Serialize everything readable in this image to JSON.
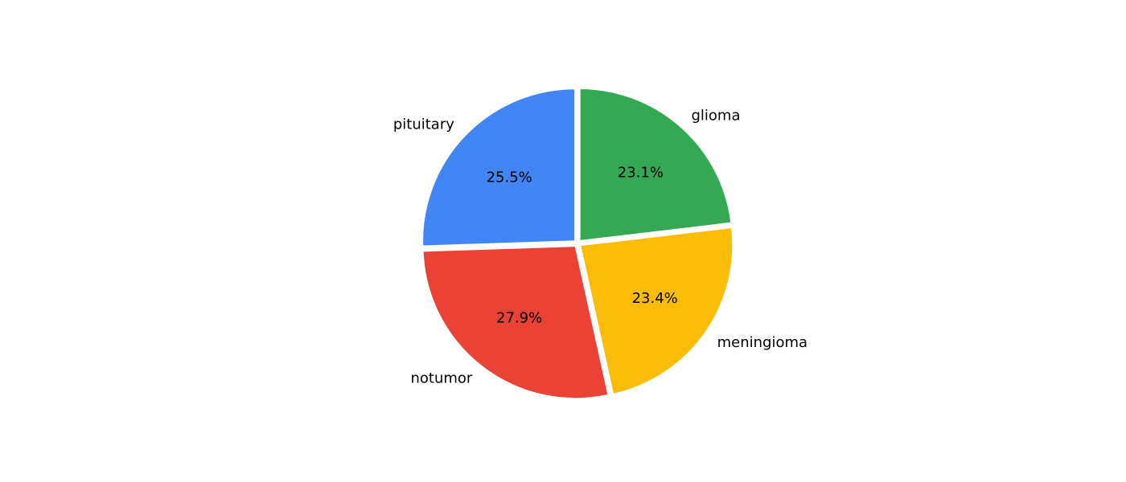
{
  "chart_data": {
    "type": "pie",
    "start_angle_deg": 90,
    "direction": "counterclockwise",
    "slices": [
      {
        "label": "pituitary",
        "value": 25.5,
        "pct_label": "25.5%",
        "color": "#4285F4"
      },
      {
        "label": "notumor",
        "value": 27.9,
        "pct_label": "27.9%",
        "color": "#EA4335"
      },
      {
        "label": "meningioma",
        "value": 23.4,
        "pct_label": "23.4%",
        "color": "#FBBC05"
      },
      {
        "label": "glioma",
        "value": 23.1,
        "pct_label": "23.1%",
        "color": "#34A853"
      }
    ]
  }
}
